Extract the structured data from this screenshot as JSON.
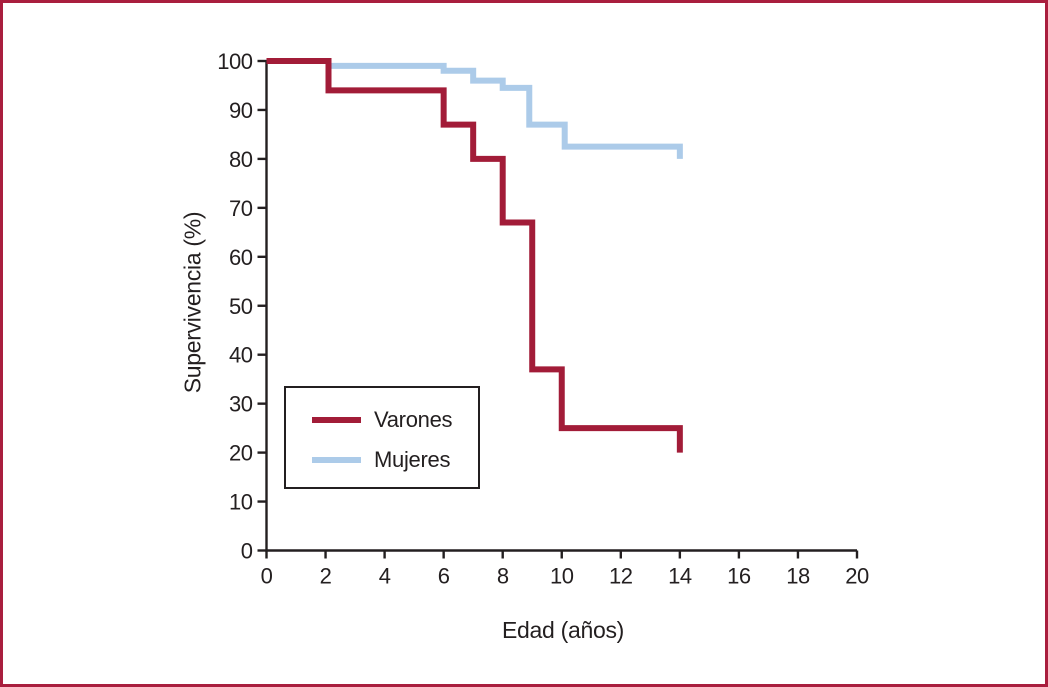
{
  "figure": {
    "background": "#ffffff",
    "border_color": "#a91e3e",
    "axis_color": "#231f20",
    "text_color": "#231f20"
  },
  "chart_data": {
    "type": "line",
    "subtype": "step-survival-kaplan-meier",
    "title": "",
    "xlabel": "Edad (años)",
    "ylabel": "Supervivencia (%)",
    "xlim": [
      0,
      20
    ],
    "ylim": [
      0,
      100
    ],
    "x_ticks": [
      0,
      2,
      4,
      6,
      8,
      10,
      12,
      14,
      16,
      18,
      20
    ],
    "y_ticks": [
      0,
      10,
      20,
      30,
      40,
      50,
      60,
      70,
      80,
      90,
      100
    ],
    "grid": false,
    "legend_position": "inside-lower-left",
    "series": [
      {
        "name": "Varones",
        "color": "#a21c38",
        "line_width": 6,
        "points": [
          [
            0,
            100
          ],
          [
            2.1,
            100
          ],
          [
            2.1,
            94
          ],
          [
            6,
            94
          ],
          [
            6,
            87
          ],
          [
            7,
            87
          ],
          [
            7,
            80
          ],
          [
            8,
            80
          ],
          [
            8,
            67
          ],
          [
            9,
            67
          ],
          [
            9,
            37
          ],
          [
            10,
            37
          ],
          [
            10,
            25
          ],
          [
            14,
            25
          ],
          [
            14,
            20
          ]
        ]
      },
      {
        "name": "Mujeres",
        "color": "#accbe9",
        "line_width": 6,
        "points": [
          [
            0,
            100
          ],
          [
            2.1,
            100
          ],
          [
            2.1,
            99
          ],
          [
            6,
            99
          ],
          [
            6,
            98
          ],
          [
            7,
            98
          ],
          [
            7,
            96
          ],
          [
            8,
            96
          ],
          [
            8,
            94.5
          ],
          [
            8.9,
            94.5
          ],
          [
            8.9,
            87
          ],
          [
            10.1,
            87
          ],
          [
            10.1,
            82.5
          ],
          [
            14,
            82.5
          ],
          [
            14,
            80
          ]
        ]
      }
    ]
  }
}
